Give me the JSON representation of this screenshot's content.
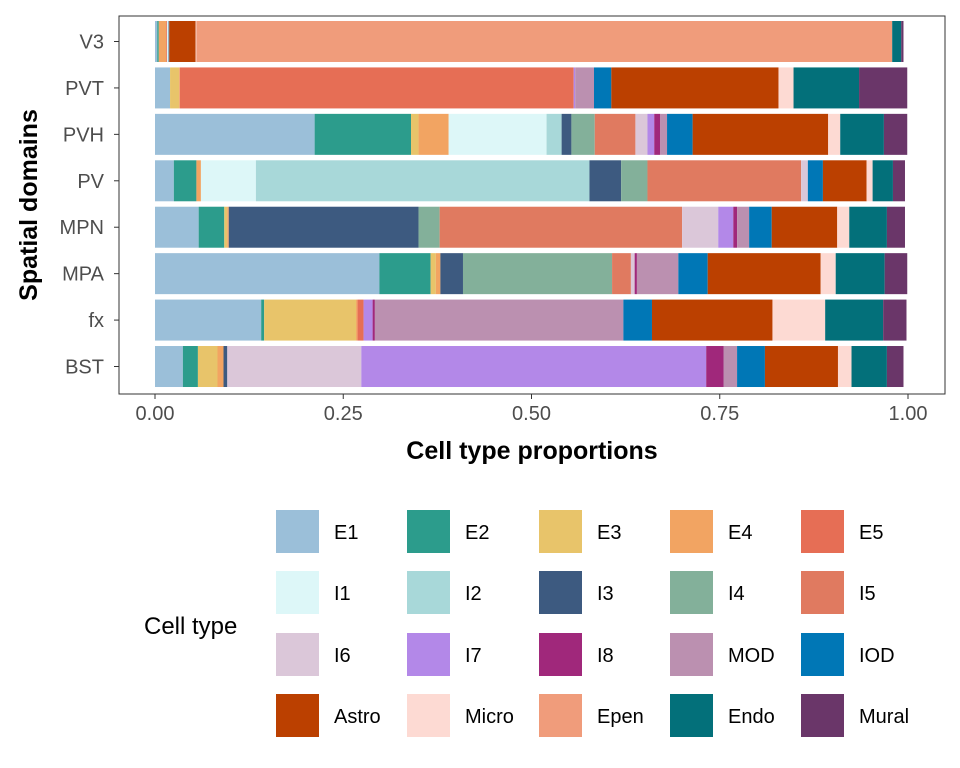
{
  "chart_data": {
    "type": "bar",
    "orientation": "horizontal",
    "stacked": true,
    "xlabel": "Cell type proportions",
    "ylabel": "Spatial domains",
    "xlim": [
      0,
      1
    ],
    "xticks": [
      "0.00",
      "0.25",
      "0.50",
      "0.75",
      "1.00"
    ],
    "grid": false,
    "legend": {
      "title": "Cell type",
      "position": "bottom"
    },
    "categories": [
      "V3",
      "PVT",
      "PVH",
      "PV",
      "MPN",
      "MPA",
      "fx",
      "BST"
    ],
    "series": [
      {
        "name": "E1",
        "color": "#9BBFD9",
        "values": [
          0.003,
          0.02,
          0.212,
          0.025,
          0.058,
          0.298,
          0.141,
          0.037
        ]
      },
      {
        "name": "E2",
        "color": "#2C9C8C",
        "values": [
          0.002,
          0.0,
          0.128,
          0.03,
          0.034,
          0.068,
          0.004,
          0.02
        ]
      },
      {
        "name": "E3",
        "color": "#E8C46A",
        "values": [
          0.0,
          0.012,
          0.01,
          0.0,
          0.004,
          0.007,
          0.122,
          0.026
        ]
      },
      {
        "name": "E4",
        "color": "#F2A462",
        "values": [
          0.01,
          0.001,
          0.04,
          0.006,
          0.002,
          0.006,
          0.002,
          0.008
        ]
      },
      {
        "name": "E5",
        "color": "#E66E55",
        "values": [
          0.001,
          0.523,
          0.0,
          0.0,
          0.0,
          0.0,
          0.008,
          0.0
        ]
      },
      {
        "name": "I1",
        "color": "#DDF7F8",
        "values": [
          0.002,
          0.0,
          0.13,
          0.073,
          0.0,
          0.0,
          0.0,
          0.0
        ]
      },
      {
        "name": "I2",
        "color": "#A8D8D9",
        "values": [
          0.0,
          0.0,
          0.02,
          0.443,
          0.0,
          0.0,
          0.0,
          0.0
        ]
      },
      {
        "name": "I3",
        "color": "#3D5A80",
        "values": [
          0.001,
          0.0,
          0.013,
          0.042,
          0.252,
          0.03,
          0.0,
          0.005
        ]
      },
      {
        "name": "I4",
        "color": "#83B09A",
        "values": [
          0.0,
          0.0,
          0.031,
          0.035,
          0.028,
          0.198,
          0.0,
          0.0
        ]
      },
      {
        "name": "I5",
        "color": "#E07A60",
        "values": [
          0.0,
          0.0,
          0.054,
          0.204,
          0.322,
          0.025,
          0.0,
          0.0
        ]
      },
      {
        "name": "I6",
        "color": "#DBC7D9",
        "values": [
          0.0,
          0.0,
          0.016,
          0.009,
          0.048,
          0.005,
          0.0,
          0.178
        ]
      },
      {
        "name": "I7",
        "color": "#B388E8",
        "values": [
          0.0,
          0.002,
          0.009,
          0.0,
          0.02,
          0.0,
          0.012,
          0.458
        ]
      },
      {
        "name": "I8",
        "color": "#A0287B",
        "values": [
          0.0,
          0.0,
          0.008,
          0.0,
          0.005,
          0.003,
          0.003,
          0.023
        ]
      },
      {
        "name": "MOD",
        "color": "#BB90B0",
        "values": [
          0.0,
          0.025,
          0.009,
          0.0,
          0.016,
          0.055,
          0.33,
          0.018
        ]
      },
      {
        "name": "IOD",
        "color": "#0077B6",
        "values": [
          0.0,
          0.023,
          0.034,
          0.02,
          0.03,
          0.039,
          0.038,
          0.037
        ]
      },
      {
        "name": "Astro",
        "color": "#BB4000",
        "values": [
          0.035,
          0.222,
          0.18,
          0.058,
          0.087,
          0.15,
          0.16,
          0.097
        ]
      },
      {
        "name": "Micro",
        "color": "#FDDAD3",
        "values": [
          0.001,
          0.02,
          0.016,
          0.008,
          0.016,
          0.02,
          0.07,
          0.018
        ]
      },
      {
        "name": "Epen",
        "color": "#F09C7B",
        "values": [
          0.924,
          0.0,
          0.0,
          0.0,
          0.0,
          0.0,
          0.0,
          0.0
        ]
      },
      {
        "name": "Endo",
        "color": "#03707A",
        "values": [
          0.012,
          0.087,
          0.058,
          0.027,
          0.05,
          0.065,
          0.077,
          0.047
        ]
      },
      {
        "name": "Mural",
        "color": "#6A3669",
        "values": [
          0.003,
          0.064,
          0.031,
          0.016,
          0.024,
          0.03,
          0.031,
          0.022
        ]
      }
    ]
  }
}
